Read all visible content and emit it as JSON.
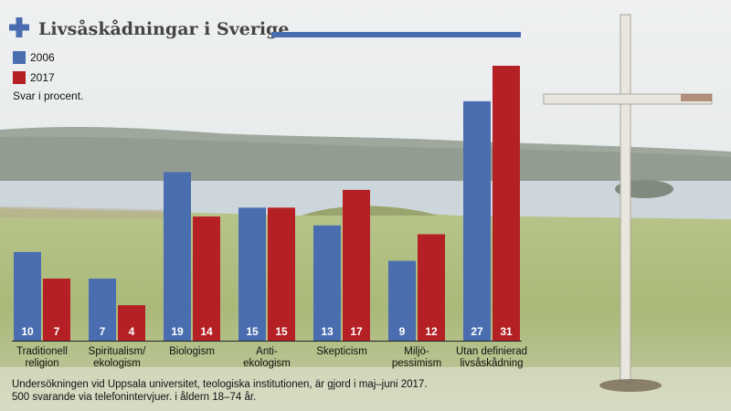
{
  "colors": {
    "series_2006": "#4a6db0",
    "series_2017": "#b52025",
    "title_rule": "#4a6db0",
    "title_text": "#444444"
  },
  "icons": {
    "title_icon": "plus-icon"
  },
  "chart_data": {
    "type": "bar",
    "title": "Livsåskådningar i Sverige",
    "subtitle": "Svar i procent.",
    "categories": [
      [
        "Traditionell",
        "religion"
      ],
      [
        "Spiritualism/",
        "ekologism"
      ],
      [
        "Biologism"
      ],
      [
        "Anti-",
        "ekologism"
      ],
      [
        "Skepticism"
      ],
      [
        "Miljö-",
        "pessimism"
      ],
      [
        "Utan definierad",
        "livsåskådning"
      ]
    ],
    "series": [
      {
        "name": "2006",
        "color": "#4a6db0",
        "values": [
          10,
          7,
          19,
          15,
          13,
          9,
          27
        ]
      },
      {
        "name": "2017",
        "color": "#b52025",
        "values": [
          7,
          4,
          14,
          15,
          17,
          12,
          31
        ]
      }
    ],
    "ylim": [
      0,
      31
    ],
    "legend_position": "top-left",
    "data_labels": "inside-bottom",
    "grid": false,
    "footnote": [
      "Undersökningen vid Uppsala universitet, teologiska institutionen, är gjord i maj–juni 2017.",
      "500 svarande via telefonintervjuer. i åldern 18–74 år."
    ]
  }
}
